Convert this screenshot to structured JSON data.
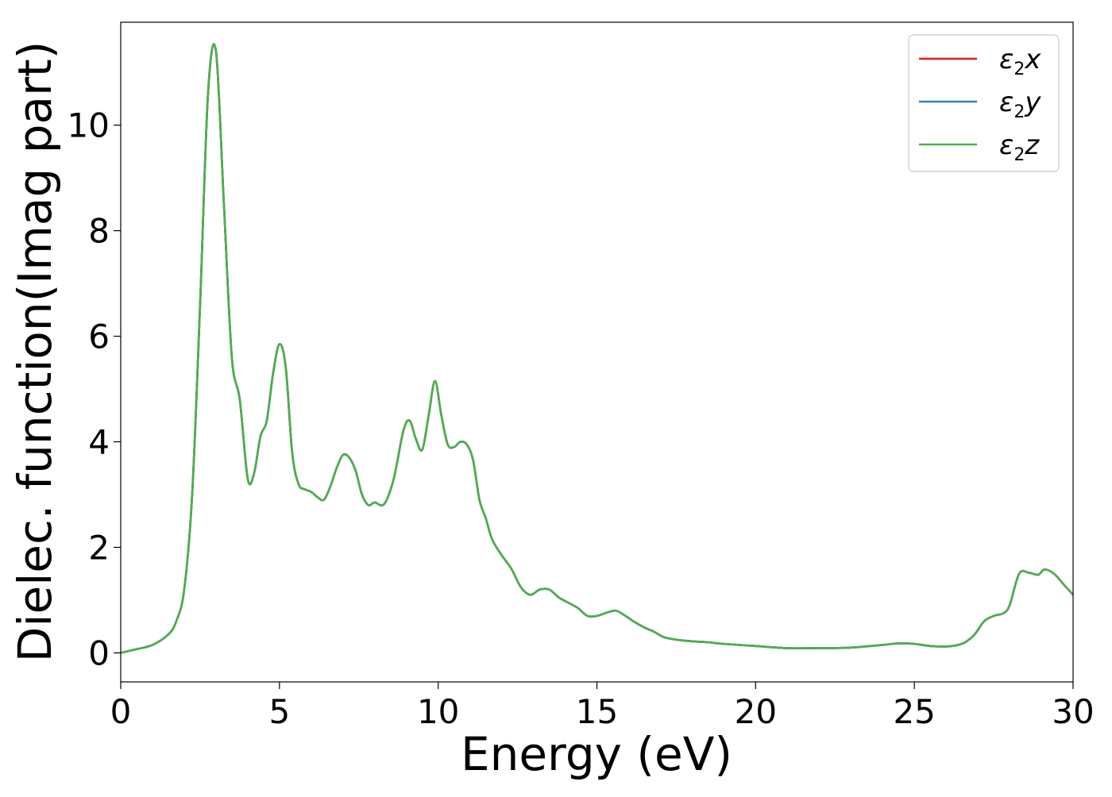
{
  "chart_data": {
    "type": "line",
    "title": "",
    "xlabel": "Energy (eV)",
    "ylabel": "Dielec. function(Imag part)",
    "xlim": [
      0,
      30
    ],
    "ylim": [
      -0.55,
      11.95
    ],
    "xticks": [
      0,
      5,
      10,
      15,
      20,
      25,
      30
    ],
    "yticks": [
      0,
      2,
      4,
      6,
      8,
      10
    ],
    "grid": false,
    "legend_position": "top-right",
    "x": [
      0,
      0.5,
      1.0,
      1.5,
      1.75,
      2.0,
      2.25,
      2.5,
      2.75,
      3.0,
      3.25,
      3.5,
      3.75,
      4.0,
      4.2,
      4.4,
      4.6,
      4.8,
      5.0,
      5.2,
      5.4,
      5.6,
      5.8,
      6.0,
      6.2,
      6.4,
      6.6,
      6.8,
      7.0,
      7.2,
      7.4,
      7.6,
      7.8,
      8.0,
      8.3,
      8.6,
      8.9,
      9.1,
      9.3,
      9.5,
      9.7,
      9.9,
      10.1,
      10.3,
      10.5,
      10.7,
      10.9,
      11.1,
      11.3,
      11.5,
      11.7,
      12.0,
      12.3,
      12.6,
      12.9,
      13.2,
      13.5,
      13.8,
      14.1,
      14.4,
      14.7,
      15.0,
      15.3,
      15.6,
      15.9,
      16.2,
      16.5,
      16.8,
      17.1,
      17.5,
      18.0,
      18.5,
      19.0,
      20.0,
      21.0,
      22.0,
      23.0,
      24.0,
      24.5,
      25.0,
      25.5,
      26.0,
      26.3,
      26.6,
      26.9,
      27.2,
      27.5,
      27.8,
      28.0,
      28.3,
      28.6,
      28.9,
      29.1,
      29.4,
      29.7,
      30.0
    ],
    "series": [
      {
        "name": "ε₂x",
        "color": "#e41a1c",
        "values": [
          0.0,
          0.07,
          0.15,
          0.35,
          0.6,
          1.2,
          3.0,
          6.6,
          10.6,
          11.4,
          8.5,
          5.6,
          4.8,
          3.3,
          3.4,
          4.1,
          4.4,
          5.3,
          5.85,
          5.4,
          3.8,
          3.2,
          3.1,
          3.05,
          2.95,
          2.9,
          3.15,
          3.5,
          3.75,
          3.7,
          3.45,
          3.0,
          2.8,
          2.85,
          2.82,
          3.3,
          4.2,
          4.4,
          4.05,
          3.85,
          4.5,
          5.15,
          4.5,
          3.95,
          3.9,
          4.0,
          3.95,
          3.65,
          2.9,
          2.55,
          2.15,
          1.85,
          1.6,
          1.25,
          1.1,
          1.2,
          1.2,
          1.05,
          0.95,
          0.85,
          0.7,
          0.7,
          0.76,
          0.8,
          0.7,
          0.58,
          0.48,
          0.4,
          0.3,
          0.25,
          0.22,
          0.2,
          0.17,
          0.13,
          0.09,
          0.09,
          0.1,
          0.15,
          0.18,
          0.17,
          0.13,
          0.12,
          0.14,
          0.2,
          0.35,
          0.6,
          0.7,
          0.75,
          0.9,
          1.5,
          1.52,
          1.48,
          1.58,
          1.5,
          1.3,
          1.1
        ]
      },
      {
        "name": "ε₂y",
        "color": "#377eb8",
        "values": [
          0.0,
          0.07,
          0.15,
          0.35,
          0.6,
          1.2,
          3.0,
          6.6,
          10.6,
          11.4,
          8.5,
          5.6,
          4.8,
          3.3,
          3.4,
          4.1,
          4.4,
          5.3,
          5.85,
          5.4,
          3.8,
          3.2,
          3.1,
          3.05,
          2.95,
          2.9,
          3.15,
          3.5,
          3.75,
          3.7,
          3.45,
          3.0,
          2.8,
          2.85,
          2.82,
          3.3,
          4.2,
          4.4,
          4.05,
          3.85,
          4.5,
          5.15,
          4.5,
          3.95,
          3.9,
          4.0,
          3.95,
          3.65,
          2.9,
          2.55,
          2.15,
          1.85,
          1.6,
          1.25,
          1.1,
          1.2,
          1.2,
          1.05,
          0.95,
          0.85,
          0.7,
          0.7,
          0.76,
          0.8,
          0.7,
          0.58,
          0.48,
          0.4,
          0.3,
          0.25,
          0.22,
          0.2,
          0.17,
          0.13,
          0.09,
          0.09,
          0.1,
          0.15,
          0.18,
          0.17,
          0.13,
          0.12,
          0.14,
          0.2,
          0.35,
          0.6,
          0.7,
          0.75,
          0.9,
          1.5,
          1.52,
          1.48,
          1.58,
          1.5,
          1.3,
          1.1
        ]
      },
      {
        "name": "ε₂z",
        "color": "#4daf4a",
        "values": [
          0.0,
          0.07,
          0.15,
          0.35,
          0.6,
          1.2,
          3.0,
          6.6,
          10.6,
          11.4,
          8.5,
          5.6,
          4.8,
          3.3,
          3.4,
          4.1,
          4.4,
          5.3,
          5.85,
          5.4,
          3.8,
          3.2,
          3.1,
          3.05,
          2.95,
          2.9,
          3.15,
          3.5,
          3.75,
          3.7,
          3.45,
          3.0,
          2.8,
          2.85,
          2.82,
          3.3,
          4.2,
          4.4,
          4.05,
          3.85,
          4.5,
          5.15,
          4.5,
          3.95,
          3.9,
          4.0,
          3.95,
          3.65,
          2.9,
          2.55,
          2.15,
          1.85,
          1.6,
          1.25,
          1.1,
          1.2,
          1.2,
          1.05,
          0.95,
          0.85,
          0.7,
          0.7,
          0.76,
          0.8,
          0.7,
          0.58,
          0.48,
          0.4,
          0.3,
          0.25,
          0.22,
          0.2,
          0.17,
          0.13,
          0.09,
          0.09,
          0.1,
          0.15,
          0.18,
          0.17,
          0.13,
          0.12,
          0.14,
          0.2,
          0.35,
          0.6,
          0.7,
          0.75,
          0.9,
          1.5,
          1.52,
          1.48,
          1.58,
          1.5,
          1.3,
          1.1
        ]
      }
    ],
    "legend": {
      "entries": [
        {
          "symbol": "ε",
          "subscript": "2",
          "component": "x"
        },
        {
          "symbol": "ε",
          "subscript": "2",
          "component": "y"
        },
        {
          "symbol": "ε",
          "subscript": "2",
          "component": "z"
        }
      ]
    }
  }
}
